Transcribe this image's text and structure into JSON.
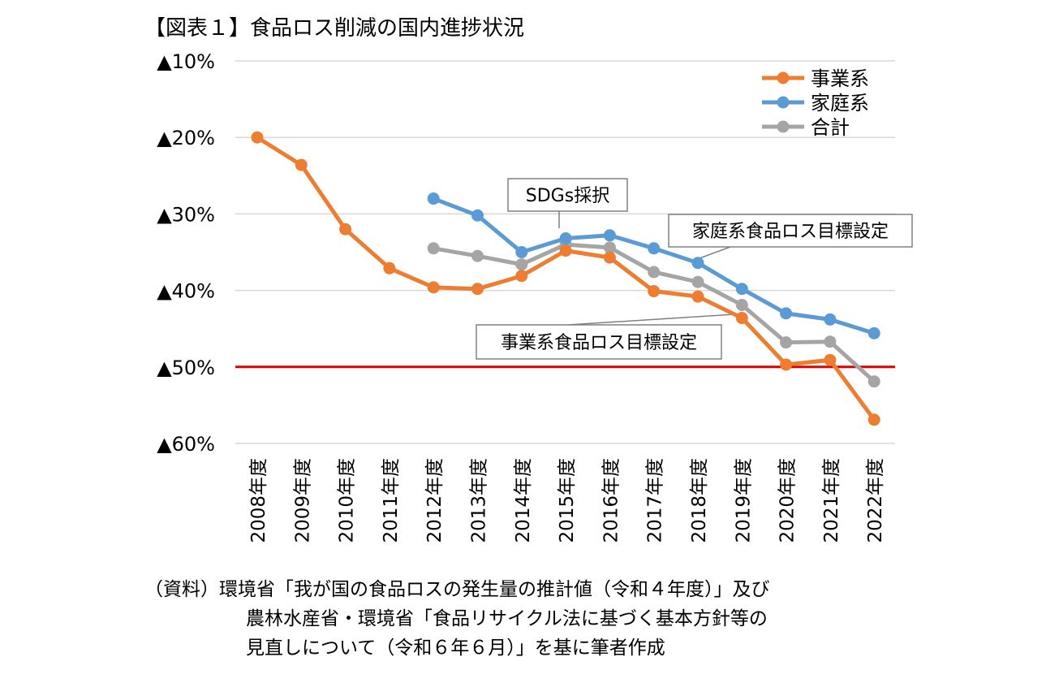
{
  "chart_data": {
    "type": "line",
    "title": "【図表１】食品ロス削減の国内進捗状況",
    "categories": [
      "2008年度",
      "2009年度",
      "2010年度",
      "2011年度",
      "2012年度",
      "2013年度",
      "2014年度",
      "2015年度",
      "2016年度",
      "2017年度",
      "2018年度",
      "2019年度",
      "2020年度",
      "2021年度",
      "2022年度"
    ],
    "series": [
      {
        "name": "事業系",
        "color": "#ED7D31",
        "values": [
          -20.0,
          -23.6,
          -32.0,
          -37.1,
          -39.6,
          -39.8,
          -38.1,
          -34.8,
          -35.7,
          -40.1,
          -40.8,
          -43.6,
          -49.7,
          -49.1,
          -56.9
        ]
      },
      {
        "name": "家庭系",
        "color": "#5B9BD5",
        "values": [
          null,
          null,
          null,
          null,
          -28.0,
          -30.2,
          -35.0,
          -33.2,
          -32.8,
          -34.5,
          -36.4,
          -39.8,
          -43.0,
          -43.8,
          -45.6
        ]
      },
      {
        "name": "合計",
        "color": "#A5A5A5",
        "values": [
          null,
          null,
          null,
          null,
          -34.5,
          -35.5,
          -36.6,
          -34.0,
          -34.4,
          -37.6,
          -38.9,
          -41.9,
          -46.8,
          -46.7,
          -51.9
        ]
      }
    ],
    "ylim": [
      -60,
      -10
    ],
    "yticks": [
      -10,
      -20,
      -30,
      -40,
      -50,
      -60
    ],
    "ytick_labels": [
      "▲10%",
      "▲20%",
      "▲30%",
      "▲40%",
      "▲50%",
      "▲60%"
    ],
    "target_line": {
      "value": -50,
      "color": "#E00000"
    },
    "annotations": [
      {
        "text": "SDGs採択",
        "category": "2015年度"
      },
      {
        "text": "家庭系食品ロス目標設定",
        "category": "2018年度"
      },
      {
        "text": "事業系食品ロス目標設定",
        "category": "2019年度"
      }
    ],
    "legend_position": "top-right",
    "grid": true
  },
  "source": {
    "line1": "（資料）環境省「我が国の食品ロスの発生量の推計値（令和４年度）」及び",
    "line2": "農林水産省・環境省「食品リサイクル法に基づく基本方針等の",
    "line3": "見直しについて（令和６年６月）」を基に筆者作成"
  }
}
